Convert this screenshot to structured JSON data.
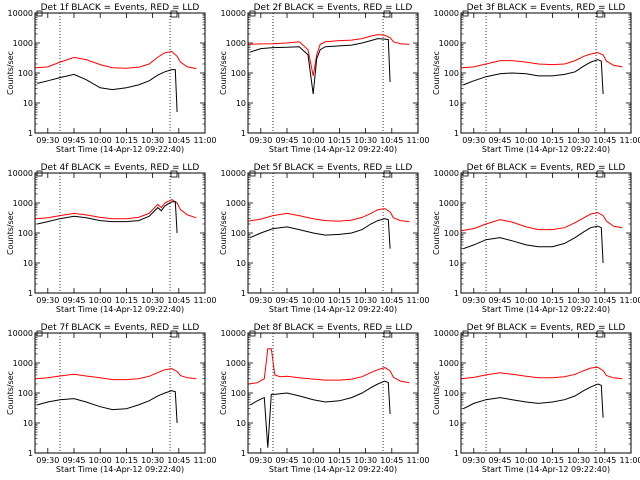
{
  "chart_data": [
    {
      "type": "line",
      "title": "Det 1f BLACK = Events, RED = LLD",
      "xlabel": "Start Time (14-Apr-12 09:22:40)",
      "ylabel": "Counts/sec",
      "yscale": "log",
      "ylim": [
        1,
        10000
      ],
      "xlim": [
        "09:22:40",
        "11:00"
      ],
      "yticks": [
        "1",
        "10",
        "100",
        "1000",
        "10000"
      ],
      "xticks": [
        "09:30",
        "09:45",
        "10:00",
        "10:15",
        "10:30",
        "10:45",
        "11:00"
      ],
      "vlines": [
        "09:37",
        "10:40"
      ],
      "series": [
        {
          "color": "#ff0000",
          "times": [
            "09:23",
            "09:30",
            "09:37",
            "09:45",
            "09:52",
            "10:00",
            "10:07",
            "10:15",
            "10:22",
            "10:28",
            "10:33",
            "10:37",
            "10:41",
            "10:44",
            "10:46",
            "10:50",
            "10:55"
          ],
          "values": [
            150,
            160,
            230,
            330,
            280,
            190,
            150,
            145,
            155,
            200,
            340,
            470,
            520,
            360,
            230,
            160,
            140
          ]
        },
        {
          "color": "#000000",
          "times": [
            "09:24",
            "09:30",
            "09:37",
            "09:45",
            "09:52",
            "10:00",
            "10:07",
            "10:15",
            "10:22",
            "10:28",
            "10:33",
            "10:37",
            "10:41",
            "10:43",
            "10:44"
          ],
          "values": [
            45,
            55,
            70,
            90,
            60,
            32,
            28,
            32,
            40,
            55,
            85,
            110,
            130,
            130,
            5
          ]
        }
      ]
    },
    {
      "type": "line",
      "title": "Det 2f BLACK = Events, RED = LLD",
      "xlabel": "Start Time (14-Apr-12 09:22:40)",
      "ylabel": "Counts/sec",
      "yscale": "log",
      "ylim": [
        1,
        10000
      ],
      "xlim": [
        "09:22:40",
        "11:00"
      ],
      "yticks": [
        "1",
        "10",
        "100",
        "1000",
        "10000"
      ],
      "xticks": [
        "09:30",
        "09:45",
        "10:00",
        "10:15",
        "10:30",
        "10:45",
        "11:00"
      ],
      "vlines": [
        "09:37",
        "10:40"
      ],
      "series": [
        {
          "color": "#ff0000",
          "times": [
            "09:23",
            "09:30",
            "09:37",
            "09:45",
            "09:52",
            "09:57",
            "10:00",
            "10:02",
            "10:04",
            "10:07",
            "10:15",
            "10:22",
            "10:28",
            "10:33",
            "10:37",
            "10:41",
            "10:44",
            "10:46",
            "10:50",
            "10:55"
          ],
          "values": [
            900,
            930,
            950,
            1000,
            1100,
            600,
            80,
            400,
            900,
            1100,
            1200,
            1250,
            1400,
            1700,
            1900,
            1800,
            1500,
            1100,
            950,
            900
          ]
        },
        {
          "color": "#000000",
          "times": [
            "09:24",
            "09:30",
            "09:37",
            "09:45",
            "09:52",
            "09:57",
            "10:00",
            "10:02",
            "10:04",
            "10:07",
            "10:15",
            "10:22",
            "10:28",
            "10:33",
            "10:37",
            "10:41",
            "10:43",
            "10:44"
          ],
          "values": [
            500,
            650,
            700,
            720,
            750,
            400,
            20,
            300,
            600,
            750,
            800,
            850,
            1000,
            1200,
            1400,
            1350,
            1300,
            50
          ]
        }
      ]
    },
    {
      "type": "line",
      "title": "Det 3f BLACK = Events, RED = LLD",
      "xlabel": "Start Time (14-Apr-12 09:22:40)",
      "ylabel": "Counts/sec",
      "yscale": "log",
      "ylim": [
        1,
        10000
      ],
      "xlim": [
        "09:22:40",
        "11:00"
      ],
      "yticks": [
        "1",
        "10",
        "100",
        "1000",
        "10000"
      ],
      "xticks": [
        "09:30",
        "09:45",
        "10:00",
        "10:15",
        "10:30",
        "10:45",
        "11:00"
      ],
      "vlines": [
        "09:37",
        "10:40"
      ],
      "series": [
        {
          "color": "#ff0000",
          "times": [
            "09:23",
            "09:30",
            "09:37",
            "09:45",
            "09:52",
            "10:00",
            "10:07",
            "10:15",
            "10:22",
            "10:28",
            "10:33",
            "10:37",
            "10:41",
            "10:44",
            "10:46",
            "10:50",
            "10:55"
          ],
          "values": [
            150,
            160,
            200,
            260,
            260,
            230,
            200,
            190,
            200,
            260,
            360,
            430,
            480,
            400,
            250,
            180,
            160
          ]
        },
        {
          "color": "#000000",
          "times": [
            "09:24",
            "09:30",
            "09:37",
            "09:45",
            "09:52",
            "10:00",
            "10:07",
            "10:15",
            "10:22",
            "10:28",
            "10:33",
            "10:37",
            "10:41",
            "10:43",
            "10:44"
          ],
          "values": [
            40,
            55,
            75,
            95,
            100,
            95,
            80,
            80,
            90,
            110,
            170,
            230,
            280,
            250,
            20
          ]
        }
      ]
    },
    {
      "type": "line",
      "title": "Det 4f BLACK = Events, RED = LLD",
      "xlabel": "Start Time (14-Apr-12 09:22:40)",
      "ylabel": "Counts/sec",
      "yscale": "log",
      "ylim": [
        1,
        10000
      ],
      "xlim": [
        "09:22:40",
        "11:00"
      ],
      "yticks": [
        "1",
        "10",
        "100",
        "1000",
        "10000"
      ],
      "xticks": [
        "09:30",
        "09:45",
        "10:00",
        "10:15",
        "10:30",
        "10:45",
        "11:00"
      ],
      "vlines": [
        "09:37",
        "10:40"
      ],
      "series": [
        {
          "color": "#ff0000",
          "times": [
            "09:23",
            "09:30",
            "09:37",
            "09:45",
            "09:52",
            "10:00",
            "10:07",
            "10:15",
            "10:22",
            "10:28",
            "10:33",
            "10:35",
            "10:37",
            "10:41",
            "10:44",
            "10:46",
            "10:50",
            "10:55"
          ],
          "values": [
            300,
            320,
            380,
            450,
            400,
            330,
            300,
            300,
            330,
            450,
            900,
            700,
            1000,
            1300,
            1000,
            600,
            400,
            320
          ]
        },
        {
          "color": "#000000",
          "times": [
            "09:24",
            "09:30",
            "09:37",
            "09:45",
            "09:52",
            "10:00",
            "10:07",
            "10:15",
            "10:22",
            "10:28",
            "10:33",
            "10:35",
            "10:37",
            "10:41",
            "10:43",
            "10:44"
          ],
          "values": [
            200,
            240,
            300,
            360,
            320,
            260,
            240,
            240,
            260,
            360,
            700,
            550,
            800,
            1100,
            1100,
            100
          ]
        }
      ]
    },
    {
      "type": "line",
      "title": "Det 5f BLACK = Events, RED = LLD",
      "xlabel": "Start Time (14-Apr-12 09:22:40)",
      "ylabel": "Counts/sec",
      "yscale": "log",
      "ylim": [
        1,
        10000
      ],
      "xlim": [
        "09:22:40",
        "11:00"
      ],
      "yticks": [
        "1",
        "10",
        "100",
        "1000",
        "10000"
      ],
      "xticks": [
        "09:30",
        "09:45",
        "10:00",
        "10:15",
        "10:30",
        "10:45",
        "11:00"
      ],
      "vlines": [
        "09:37",
        "10:40"
      ],
      "series": [
        {
          "color": "#ff0000",
          "times": [
            "09:23",
            "09:30",
            "09:37",
            "09:45",
            "09:52",
            "10:00",
            "10:07",
            "10:15",
            "10:22",
            "10:28",
            "10:33",
            "10:37",
            "10:41",
            "10:44",
            "10:46",
            "10:50",
            "10:55"
          ],
          "values": [
            250,
            290,
            380,
            450,
            380,
            300,
            260,
            250,
            270,
            330,
            450,
            600,
            650,
            500,
            320,
            260,
            240
          ]
        },
        {
          "color": "#000000",
          "times": [
            "09:24",
            "09:30",
            "09:37",
            "09:45",
            "09:52",
            "10:00",
            "10:07",
            "10:15",
            "10:22",
            "10:28",
            "10:33",
            "10:37",
            "10:41",
            "10:43",
            "10:44"
          ],
          "values": [
            70,
            100,
            140,
            160,
            130,
            100,
            85,
            90,
            100,
            130,
            200,
            260,
            300,
            280,
            30
          ]
        }
      ]
    },
    {
      "type": "line",
      "title": "Det 6f BLACK = Events, RED = LLD",
      "xlabel": "Start Time (14-Apr-12 09:22:40)",
      "ylabel": "Counts/sec",
      "yscale": "log",
      "ylim": [
        1,
        10000
      ],
      "xlim": [
        "09:22:40",
        "11:00"
      ],
      "yticks": [
        "1",
        "10",
        "100",
        "1000",
        "10000"
      ],
      "xticks": [
        "09:30",
        "09:45",
        "10:00",
        "10:15",
        "10:30",
        "10:45",
        "11:00"
      ],
      "vlines": [
        "09:37",
        "10:40"
      ],
      "series": [
        {
          "color": "#ff0000",
          "times": [
            "09:23",
            "09:30",
            "09:37",
            "09:45",
            "09:52",
            "10:00",
            "10:07",
            "10:15",
            "10:22",
            "10:28",
            "10:33",
            "10:37",
            "10:41",
            "10:44",
            "10:46",
            "10:50",
            "10:55"
          ],
          "values": [
            120,
            140,
            200,
            280,
            230,
            160,
            130,
            130,
            150,
            220,
            320,
            430,
            480,
            380,
            250,
            170,
            150
          ]
        },
        {
          "color": "#000000",
          "times": [
            "09:24",
            "09:30",
            "09:37",
            "09:45",
            "09:52",
            "10:00",
            "10:07",
            "10:15",
            "10:22",
            "10:28",
            "10:33",
            "10:37",
            "10:41",
            "10:43",
            "10:44"
          ],
          "values": [
            30,
            40,
            60,
            70,
            55,
            40,
            35,
            35,
            45,
            70,
            110,
            150,
            170,
            150,
            10
          ]
        }
      ]
    },
    {
      "type": "line",
      "title": "Det 7f BLACK = Events, RED = LLD",
      "xlabel": "Start Time (14-Apr-12 09:22:40)",
      "ylabel": "Counts/sec",
      "yscale": "log",
      "ylim": [
        1,
        10000
      ],
      "xlim": [
        "09:22:40",
        "11:00"
      ],
      "yticks": [
        "1",
        "10",
        "100",
        "1000",
        "10000"
      ],
      "xticks": [
        "09:30",
        "09:45",
        "10:00",
        "10:15",
        "10:30",
        "10:45",
        "11:00"
      ],
      "vlines": [
        "09:37",
        "10:40"
      ],
      "series": [
        {
          "color": "#ff0000",
          "times": [
            "09:23",
            "09:30",
            "09:37",
            "09:45",
            "09:52",
            "10:00",
            "10:07",
            "10:15",
            "10:22",
            "10:28",
            "10:33",
            "10:37",
            "10:41",
            "10:44",
            "10:46",
            "10:50",
            "10:55"
          ],
          "values": [
            300,
            320,
            370,
            420,
            370,
            320,
            280,
            280,
            300,
            360,
            480,
            600,
            650,
            520,
            380,
            320,
            300
          ]
        },
        {
          "color": "#000000",
          "times": [
            "09:24",
            "09:30",
            "09:37",
            "09:45",
            "09:52",
            "10:00",
            "10:07",
            "10:15",
            "10:22",
            "10:28",
            "10:33",
            "10:37",
            "10:41",
            "10:43",
            "10:44"
          ],
          "values": [
            40,
            50,
            60,
            65,
            50,
            35,
            28,
            30,
            40,
            55,
            80,
            100,
            120,
            110,
            10
          ]
        }
      ]
    },
    {
      "type": "line",
      "title": "Det 8f BLACK = Events, RED = LLD",
      "xlabel": "Start Time (14-Apr-12 09:22:40)",
      "ylabel": "Counts/sec",
      "yscale": "log",
      "ylim": [
        1,
        10000
      ],
      "xlim": [
        "09:22:40",
        "11:00"
      ],
      "yticks": [
        "1",
        "10",
        "100",
        "1000",
        "10000"
      ],
      "xticks": [
        "09:30",
        "09:45",
        "10:00",
        "10:15",
        "10:30",
        "10:45",
        "11:00"
      ],
      "vlines": [
        "09:37",
        "10:40"
      ],
      "series": [
        {
          "color": "#ff0000",
          "times": [
            "09:23",
            "09:28",
            "09:32",
            "09:34",
            "09:36",
            "09:38",
            "09:41",
            "09:45",
            "09:52",
            "10:00",
            "10:07",
            "10:15",
            "10:22",
            "10:28",
            "10:33",
            "10:37",
            "10:41",
            "10:44",
            "10:46",
            "10:50",
            "10:55"
          ],
          "values": [
            200,
            220,
            300,
            3000,
            3000,
            400,
            350,
            360,
            320,
            290,
            270,
            270,
            290,
            350,
            480,
            600,
            700,
            550,
            330,
            250,
            220
          ]
        },
        {
          "color": "#000000",
          "times": [
            "09:24",
            "09:28",
            "09:32",
            "09:34",
            "09:36",
            "09:38",
            "09:41",
            "09:45",
            "09:52",
            "10:00",
            "10:07",
            "10:15",
            "10:22",
            "10:28",
            "10:33",
            "10:37",
            "10:41",
            "10:43",
            "10:44"
          ],
          "values": [
            40,
            55,
            70,
            1.5,
            90,
            90,
            95,
            100,
            80,
            60,
            50,
            55,
            70,
            100,
            150,
            200,
            250,
            220,
            20
          ]
        }
      ]
    },
    {
      "type": "line",
      "title": "Det 9f BLACK = Events, RED = LLD",
      "xlabel": "Start Time (14-Apr-12 09:22:40)",
      "ylabel": "Counts/sec",
      "yscale": "log",
      "ylim": [
        1,
        10000
      ],
      "xlim": [
        "09:22:40",
        "11:00"
      ],
      "yticks": [
        "1",
        "10",
        "100",
        "1000",
        "10000"
      ],
      "xticks": [
        "09:30",
        "09:45",
        "10:00",
        "10:15",
        "10:30",
        "10:45",
        "11:00"
      ],
      "vlines": [
        "09:37",
        "10:40"
      ],
      "series": [
        {
          "color": "#ff0000",
          "times": [
            "09:23",
            "09:30",
            "09:37",
            "09:45",
            "09:52",
            "10:00",
            "10:07",
            "10:15",
            "10:22",
            "10:28",
            "10:33",
            "10:37",
            "10:41",
            "10:44",
            "10:46",
            "10:50",
            "10:55"
          ],
          "values": [
            300,
            330,
            400,
            470,
            420,
            360,
            320,
            320,
            350,
            420,
            560,
            680,
            720,
            560,
            380,
            320,
            300
          ]
        },
        {
          "color": "#000000",
          "times": [
            "09:24",
            "09:30",
            "09:37",
            "09:45",
            "09:52",
            "10:00",
            "10:07",
            "10:15",
            "10:22",
            "10:28",
            "10:33",
            "10:37",
            "10:41",
            "10:43",
            "10:44"
          ],
          "values": [
            30,
            45,
            60,
            70,
            60,
            50,
            45,
            50,
            60,
            80,
            120,
            160,
            200,
            180,
            15
          ]
        }
      ]
    }
  ]
}
